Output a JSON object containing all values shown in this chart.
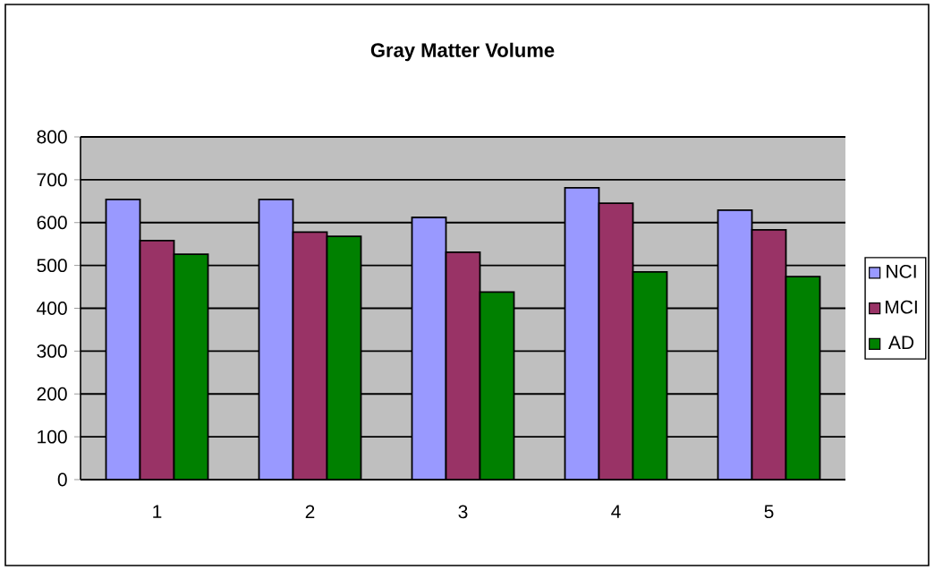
{
  "chart_data": {
    "type": "bar",
    "title": "Gray Matter Volume",
    "categories": [
      "1",
      "2",
      "3",
      "4",
      "5"
    ],
    "series": [
      {
        "name": "NCI",
        "color": "#9999ff",
        "values": [
          654,
          654,
          612,
          681,
          629
        ]
      },
      {
        "name": "MCI",
        "color": "#993366",
        "values": [
          558,
          578,
          531,
          645,
          583
        ]
      },
      {
        "name": "AD",
        "color": "#008000",
        "values": [
          526,
          568,
          438,
          485,
          474
        ]
      }
    ],
    "ylim": [
      0,
      800
    ],
    "yticks": [
      0,
      100,
      200,
      300,
      400,
      500,
      600,
      700,
      800
    ],
    "grid": "y",
    "legend": "right"
  }
}
